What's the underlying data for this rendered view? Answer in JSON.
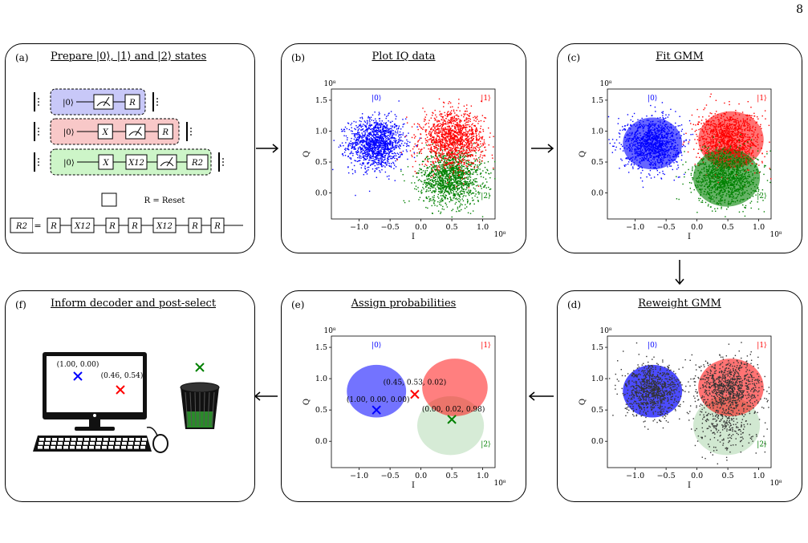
{
  "page_number": "8",
  "panels": {
    "a": {
      "label": "(a)",
      "title": "Prepare |0⟩, |1⟩ and |2⟩ states",
      "circuits": [
        [
          "|0⟩",
          "",
          "R"
        ],
        [
          "|0⟩",
          "X",
          "",
          "R"
        ],
        [
          "|0⟩",
          "X",
          "X12",
          "",
          "R2"
        ]
      ],
      "reset_legend": "R = Reset",
      "r2_equation": [
        "R2",
        "=",
        "R",
        "X12",
        "R",
        "R",
        "X12",
        "R",
        "R"
      ],
      "colors": {
        "c0": "#c8c8f8",
        "c1": "#f8c8c8",
        "c2": "#cdf5c8"
      }
    },
    "b": {
      "label": "(b)",
      "title": "Plot IQ data"
    },
    "c": {
      "label": "(c)",
      "title": "Fit GMM"
    },
    "d": {
      "label": "(d)",
      "title": "Reweight GMM"
    },
    "e": {
      "label": "(e)",
      "title": "Assign probabilities",
      "annotations": [
        "(1.00, 0.00, 0.00)",
        "(0.45, 0.53, 0.02)",
        "(0.00, 0.02, 0.98)"
      ]
    },
    "f": {
      "label": "(f)",
      "title": "Inform decoder and post-select",
      "screen_labels": [
        "(1.00, 0.00)",
        "(0.46, 0.54)"
      ]
    }
  },
  "plot_axes": {
    "xlabel": "I",
    "ylabel": "Q",
    "x_exp": "10⁸",
    "y_exp": "10⁸",
    "xticks": [
      "−1.0",
      "−0.5",
      "0.0",
      "0.5",
      "1.0"
    ],
    "yticks": [
      "0.0",
      "0.5",
      "1.0",
      "1.5"
    ],
    "xlim": [
      -1.45,
      1.2
    ],
    "ylim": [
      -0.42,
      1.68
    ]
  },
  "state_labels": {
    "s0": "|0⟩",
    "s1": "|1⟩",
    "s2": "|2⟩"
  },
  "state_colors": {
    "s0": "#0000ff",
    "s1": "#ff0000",
    "s2": "#008000"
  },
  "chart_data": {
    "type": "scatter",
    "xlabel": "I",
    "ylabel": "Q",
    "xlim": [
      -1.45,
      1.2
    ],
    "ylim": [
      -0.42,
      1.68
    ],
    "series": [
      {
        "name": "|0⟩",
        "center": [
          -0.72,
          0.8
        ],
        "spread": [
          0.22,
          0.2
        ]
      },
      {
        "name": "|1⟩",
        "center": [
          0.52,
          0.86
        ],
        "spread": [
          0.25,
          0.22
        ]
      },
      {
        "name": "|2⟩",
        "center": [
          0.48,
          0.25
        ],
        "spread": [
          0.25,
          0.22
        ]
      }
    ],
    "gmm_circles": [
      {
        "center": [
          -0.72,
          0.8
        ],
        "radius": [
          0.48,
          0.42
        ]
      },
      {
        "center": [
          0.55,
          0.86
        ],
        "radius": [
          0.53,
          0.46
        ]
      },
      {
        "center": [
          0.48,
          0.25
        ],
        "radius": [
          0.54,
          0.47
        ]
      }
    ],
    "prob_points": [
      {
        "x": -0.72,
        "y": 0.5
      },
      {
        "x": -0.1,
        "y": 0.75
      },
      {
        "x": 0.5,
        "y": 0.35
      }
    ]
  }
}
